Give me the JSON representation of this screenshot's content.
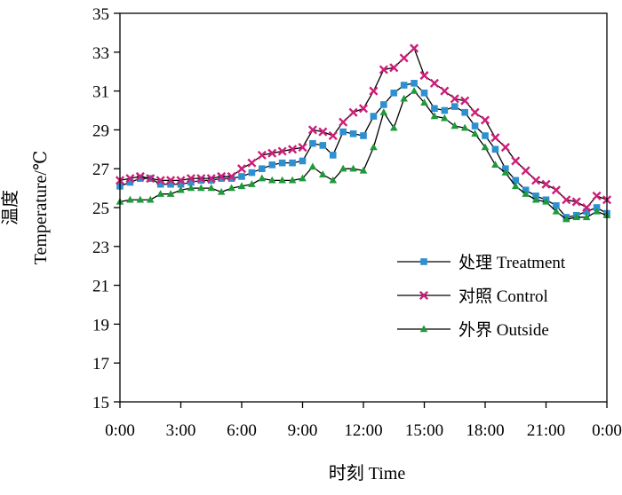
{
  "chart_data": {
    "type": "line",
    "title": "",
    "xlabel": "时刻  Time",
    "ylabel_cn": "温度",
    "ylabel_en": "Temperature/℃",
    "xlim": [
      0,
      24
    ],
    "ylim": [
      15,
      35
    ],
    "x_ticks": [
      {
        "value": 0,
        "label": "0:00"
      },
      {
        "value": 3,
        "label": "3:00"
      },
      {
        "value": 6,
        "label": "6:00"
      },
      {
        "value": 9,
        "label": "9:00"
      },
      {
        "value": 12,
        "label": "12:00"
      },
      {
        "value": 15,
        "label": "15:00"
      },
      {
        "value": 18,
        "label": "18:00"
      },
      {
        "value": 21,
        "label": "21:00"
      },
      {
        "value": 24,
        "label": "0:00"
      }
    ],
    "y_ticks": [
      15,
      17,
      19,
      21,
      23,
      25,
      27,
      29,
      31,
      33,
      35
    ],
    "legend_position": "lower-right",
    "x": [
      0,
      0.5,
      1,
      1.5,
      2,
      2.5,
      3,
      3.5,
      4,
      4.5,
      5,
      5.5,
      6,
      6.5,
      7,
      7.5,
      8,
      8.5,
      9,
      9.5,
      10,
      10.5,
      11,
      11.5,
      12,
      12.5,
      13,
      13.5,
      14,
      14.5,
      15,
      15.5,
      16,
      16.5,
      17,
      17.5,
      18,
      18.5,
      19,
      19.5,
      20,
      20.5,
      21,
      21.5,
      22,
      22.5,
      23,
      23.5,
      24
    ],
    "series": [
      {
        "name": "处理  Treatment",
        "marker": "square",
        "color": "#2e8fd1",
        "values": [
          26.1,
          26.3,
          26.5,
          26.5,
          26.2,
          26.2,
          26.2,
          26.3,
          26.4,
          26.4,
          26.5,
          26.5,
          26.6,
          26.8,
          27.0,
          27.2,
          27.3,
          27.3,
          27.4,
          28.3,
          28.2,
          27.7,
          28.9,
          28.8,
          28.7,
          29.7,
          30.3,
          30.9,
          31.3,
          31.4,
          30.9,
          30.1,
          30.0,
          30.2,
          29.9,
          29.2,
          28.7,
          28.0,
          27.0,
          26.4,
          25.9,
          25.6,
          25.4,
          25.1,
          24.5,
          24.6,
          24.8,
          25.0,
          24.7
        ]
      },
      {
        "name": "对照  Control",
        "marker": "x",
        "color": "#cc1f78",
        "values": [
          26.4,
          26.5,
          26.6,
          26.5,
          26.4,
          26.4,
          26.4,
          26.5,
          26.5,
          26.5,
          26.6,
          26.6,
          27.0,
          27.3,
          27.7,
          27.8,
          27.9,
          28.0,
          28.1,
          29.0,
          28.9,
          28.7,
          29.4,
          29.9,
          30.1,
          31.0,
          32.1,
          32.2,
          32.7,
          33.2,
          31.8,
          31.4,
          31.0,
          30.6,
          30.5,
          29.9,
          29.5,
          28.6,
          28.1,
          27.4,
          26.9,
          26.4,
          26.2,
          25.9,
          25.4,
          25.3,
          25.0,
          25.6,
          25.4
        ]
      },
      {
        "name": "外界  Outside",
        "marker": "triangle",
        "color": "#1e9a3a",
        "values": [
          25.3,
          25.4,
          25.4,
          25.4,
          25.7,
          25.7,
          25.9,
          26.0,
          26.0,
          26.0,
          25.8,
          26.0,
          26.1,
          26.2,
          26.5,
          26.4,
          26.4,
          26.4,
          26.5,
          27.1,
          26.7,
          26.4,
          27.0,
          27.0,
          26.9,
          28.1,
          29.9,
          29.1,
          30.6,
          31.0,
          30.4,
          29.7,
          29.6,
          29.2,
          29.1,
          28.8,
          28.1,
          27.2,
          26.8,
          26.1,
          25.7,
          25.4,
          25.3,
          24.8,
          24.4,
          24.5,
          24.5,
          24.8,
          24.6
        ]
      }
    ]
  }
}
